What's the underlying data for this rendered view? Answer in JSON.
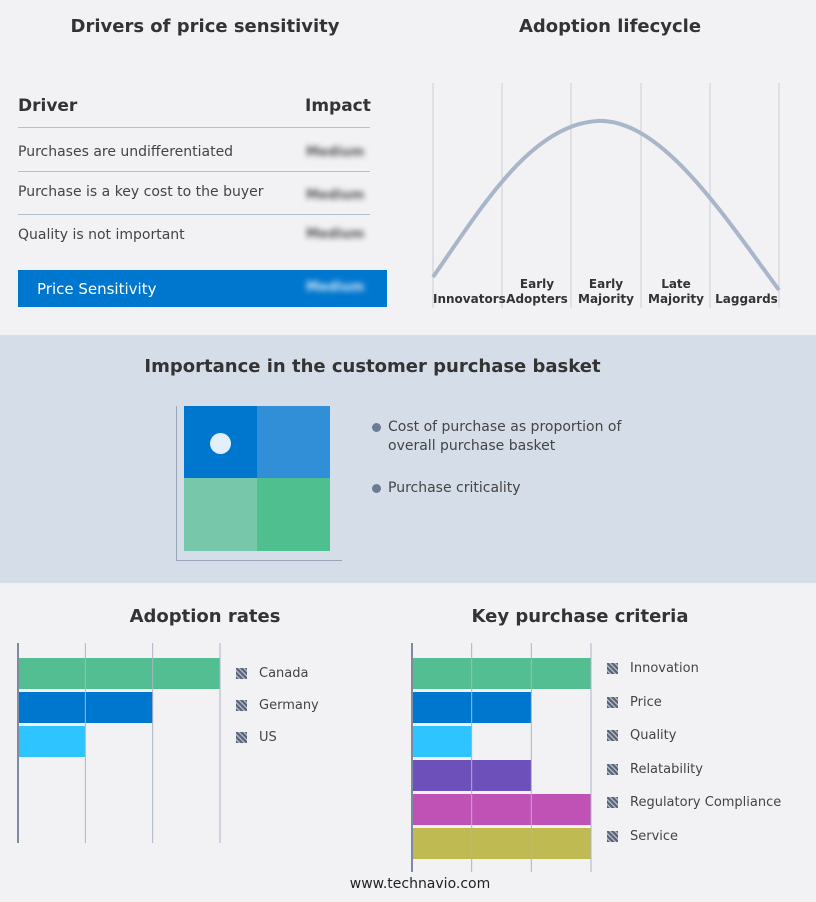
{
  "drivers": {
    "title": "Drivers of price sensitivity",
    "header_driver": "Driver",
    "header_impact": "Impact",
    "rows": [
      {
        "driver": "Purchases are undifferentiated",
        "impact": "Medium"
      },
      {
        "driver": "Purchase is a key cost to the buyer",
        "impact": "Medium"
      },
      {
        "driver": "Quality is not important",
        "impact": "Medium"
      }
    ],
    "summary": {
      "label": "Price Sensitivity",
      "impact": "Medium"
    },
    "accent": "#0077cf"
  },
  "lifecycle": {
    "title": "Adoption lifecycle",
    "stages": [
      "Innovators",
      "Early Adopters",
      "Early Majority",
      "Late Majority",
      "Laggards"
    ],
    "curve_color": "#a9b6ca"
  },
  "basket": {
    "title": "Importance in the customer purchase basket",
    "legend": [
      "Cost of purchase as proportion of overall purchase basket",
      "Purchase criticality"
    ],
    "quadrant_colors": [
      "#0077cf",
      "#318fd8",
      "#77c7aa",
      "#4fbf8f"
    ],
    "marker_quadrant": "top-left"
  },
  "chart_data": [
    {
      "type": "bar",
      "orientation": "horizontal",
      "title": "Adoption rates",
      "categories": [
        "Canada",
        "Germany",
        "US"
      ],
      "values": [
        3,
        2,
        1
      ],
      "xlim": [
        0,
        3
      ],
      "grid": true,
      "legend": "right",
      "colors": [
        "#52be92",
        "#0077cf",
        "#2ec4ff"
      ]
    },
    {
      "type": "bar",
      "orientation": "horizontal",
      "title": "Key purchase criteria",
      "categories": [
        "Innovation",
        "Price",
        "Quality",
        "Relatability",
        "Regulatory Compliance",
        "Service"
      ],
      "values": [
        3,
        2,
        1,
        2,
        3,
        3
      ],
      "xlim": [
        0,
        3
      ],
      "grid": true,
      "legend": "right",
      "colors": [
        "#52be92",
        "#0077cf",
        "#2ec4ff",
        "#6e50bb",
        "#c052b5",
        "#bfba52"
      ]
    }
  ],
  "footer": {
    "site": "www.technavio.com"
  }
}
